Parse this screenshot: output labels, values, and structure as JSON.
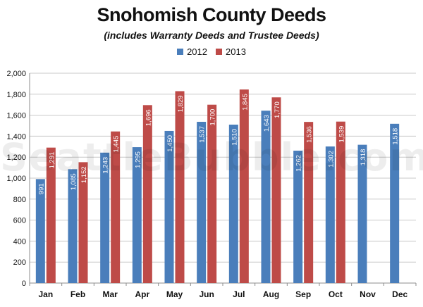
{
  "title": "Snohomish County Deeds",
  "subtitle": "(includes Warranty Deeds and Trustee Deeds)",
  "watermark": "SeattleBubble.com",
  "legend": [
    {
      "label": "2012",
      "color": "#4a7ebb"
    },
    {
      "label": "2013",
      "color": "#be4b48"
    }
  ],
  "chart_data": {
    "type": "bar",
    "categories": [
      "Jan",
      "Feb",
      "Mar",
      "Apr",
      "May",
      "Jun",
      "Jul",
      "Aug",
      "Sep",
      "Oct",
      "Nov",
      "Dec"
    ],
    "series": [
      {
        "name": "2012",
        "color": "#4a7ebb",
        "values": [
          991,
          1085,
          1243,
          1295,
          1450,
          1537,
          1510,
          1643,
          1262,
          1302,
          1318,
          1518
        ],
        "labels": [
          "991",
          "1,085",
          "1,243",
          "1,295",
          "1,450",
          "1,537",
          "1,510",
          "1,643",
          "1,262",
          "1,302",
          "1,318",
          "1,518"
        ]
      },
      {
        "name": "2013",
        "color": "#be4b48",
        "values": [
          1291,
          1152,
          1445,
          1696,
          1829,
          1700,
          1845,
          1770,
          1536,
          1539,
          null,
          null
        ],
        "labels": [
          "1,291",
          "1,152",
          "1,445",
          "1,696",
          "1,829",
          "1,700",
          "1,845",
          "1,770",
          "1,536",
          "1,539",
          "",
          ""
        ]
      }
    ],
    "ylim": [
      0,
      2000
    ],
    "yticks": [
      0,
      200,
      400,
      600,
      800,
      1000,
      1200,
      1400,
      1600,
      1800,
      2000
    ],
    "ytick_labels": [
      "0",
      "200",
      "400",
      "600",
      "800",
      "1,000",
      "1,200",
      "1,400",
      "1,600",
      "1,800",
      "2,000"
    ],
    "grid": true,
    "legend_position": "top-center",
    "xlabel": "",
    "ylabel": ""
  }
}
